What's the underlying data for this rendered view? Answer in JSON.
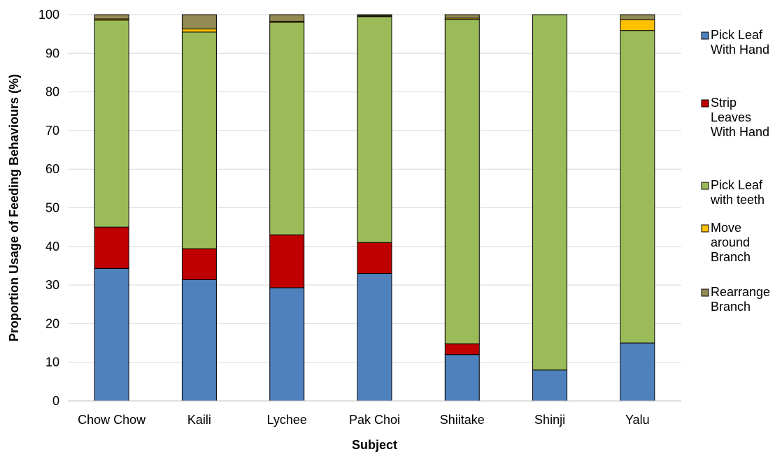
{
  "chart_data": {
    "type": "bar",
    "stacked": true,
    "title": "",
    "xlabel": "Subject",
    "ylabel": "Proportion Usage of Feeding Behaviours (%)",
    "ylim": [
      0,
      100
    ],
    "yticks": [
      0,
      10,
      20,
      30,
      40,
      50,
      60,
      70,
      80,
      90,
      100
    ],
    "grid": true,
    "legend_position": "right",
    "categories": [
      "Chow Chow",
      "Kaili",
      "Lychee",
      "Pak Choi",
      "Shiitake",
      "Shinji",
      "Yalu"
    ],
    "series": [
      {
        "name": "Pick Leaf With Hand",
        "legend_lines": [
          "Pick Leaf",
          "With Hand"
        ],
        "color": "#4f81bd",
        "values": [
          34.3,
          31.4,
          29.3,
          33.0,
          12.0,
          8.0,
          15.0
        ]
      },
      {
        "name": "Strip Leaves With Hand",
        "legend_lines": [
          "Strip",
          "Leaves",
          "With Hand"
        ],
        "color": "#c00000",
        "values": [
          10.7,
          8.0,
          13.7,
          8.0,
          2.8,
          0,
          0
        ]
      },
      {
        "name": "Pick Leaf with teeth",
        "legend_lines": [
          "Pick Leaf",
          "with teeth"
        ],
        "color": "#9bbb59",
        "values": [
          53.6,
          56.1,
          55.0,
          58.5,
          84.0,
          92.0,
          80.9
        ]
      },
      {
        "name": "Move around Branch",
        "legend_lines": [
          "Move",
          "around",
          "Branch"
        ],
        "color": "#ffc000",
        "values": [
          0.3,
          0.8,
          0.3,
          0.2,
          0.3,
          0,
          2.8
        ]
      },
      {
        "name": "Rearrange Branch",
        "legend_lines": [
          "Rearrange",
          "Branch"
        ],
        "color": "#948a54",
        "values": [
          1.1,
          3.7,
          1.7,
          0.3,
          0.9,
          0,
          1.3
        ]
      }
    ]
  }
}
